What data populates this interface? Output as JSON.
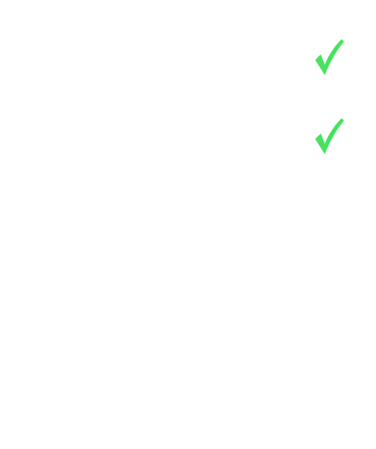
{
  "items": [
    {
      "checked": true,
      "icon": "check-icon"
    },
    {
      "checked": true,
      "icon": "check-icon"
    }
  ],
  "colors": {
    "check": "#46e35f",
    "background": "#ffffff"
  }
}
